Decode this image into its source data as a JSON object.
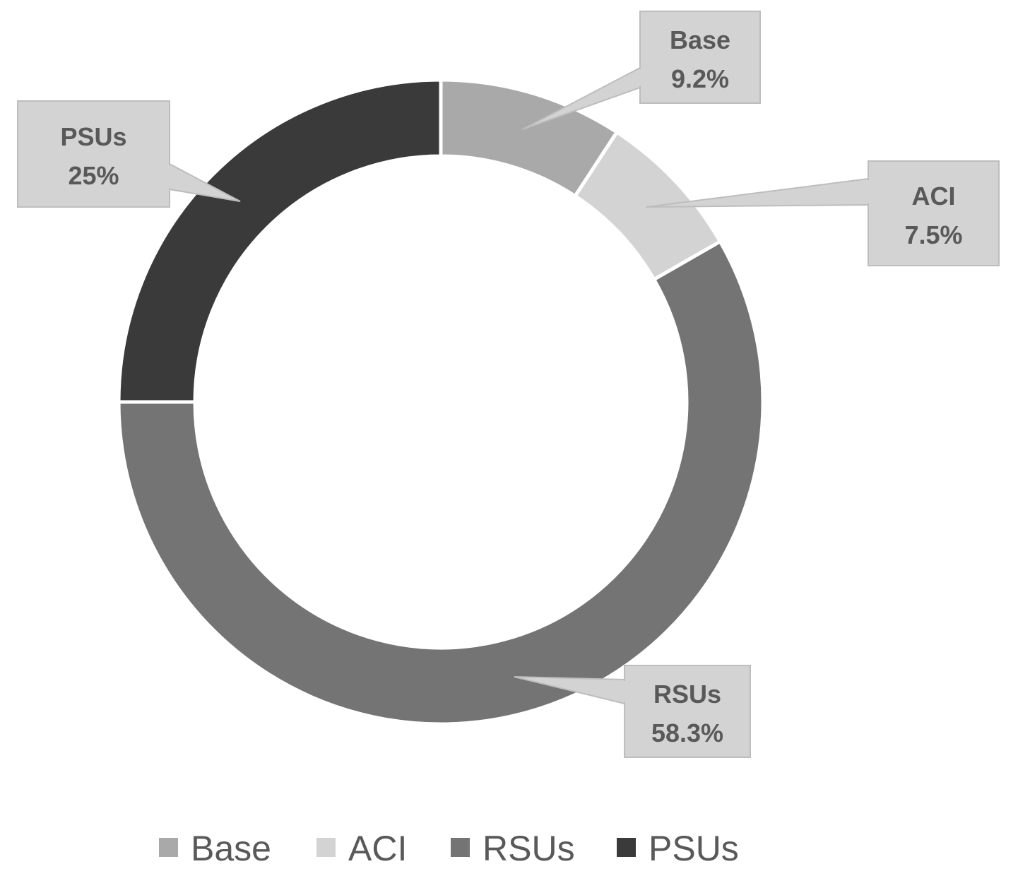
{
  "chart_data": {
    "type": "pie",
    "variant": "donut",
    "categories": [
      "Base",
      "ACI",
      "RSUs",
      "PSUs"
    ],
    "values": [
      9.2,
      7.5,
      58.3,
      25
    ],
    "value_labels": [
      "9.2%",
      "7.5%",
      "58.3%",
      "25%"
    ],
    "colors": [
      "#a9a9a9",
      "#d3d3d3",
      "#747474",
      "#3a3a3a"
    ],
    "legend_position": "bottom",
    "callout_fill": "#d3d3d3",
    "text_color": "#595959"
  }
}
